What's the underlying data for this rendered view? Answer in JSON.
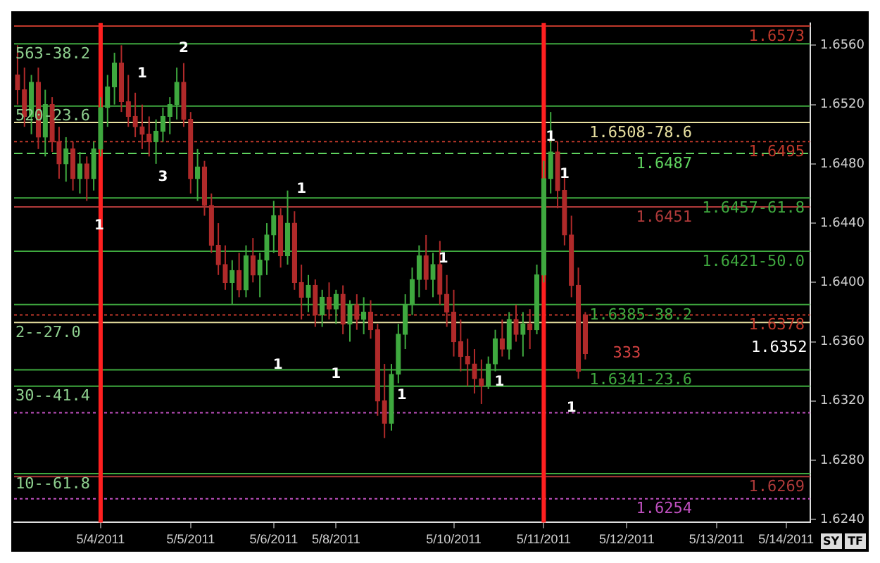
{
  "chart_data": {
    "type": "candlestick",
    "categories": [
      null,
      null,
      null,
      null,
      null,
      null,
      null,
      null,
      null,
      null,
      null,
      null,
      "5/4/2011",
      null,
      null,
      null,
      null,
      null,
      null,
      null,
      null,
      null,
      null,
      null,
      null,
      "5/5/2011",
      null,
      null,
      null,
      null,
      null,
      null,
      null,
      null,
      null,
      null,
      null,
      "5/6/2011",
      null,
      null,
      null,
      null,
      null,
      null,
      null,
      null,
      "5/8/2011",
      null,
      null,
      null,
      null,
      null,
      null,
      null,
      null,
      null,
      null,
      null,
      null,
      null,
      null,
      null,
      null,
      "5/10/2011",
      null,
      null,
      null,
      null,
      null,
      null,
      null,
      null,
      null,
      null,
      null,
      null,
      "5/11/2011",
      null,
      null,
      null,
      null,
      null,
      null,
      null,
      null,
      null,
      null,
      null,
      "5/12/2011",
      null,
      null,
      null,
      null,
      null,
      null,
      null,
      null,
      null,
      null,
      null,
      null,
      "5/13/2011",
      null,
      null,
      null,
      null,
      null,
      null,
      null,
      null,
      null,
      "5/14/2011",
      null,
      null,
      null
    ],
    "ohlc": [
      [
        1.654,
        1.656,
        1.652,
        1.653
      ],
      [
        1.653,
        1.6545,
        1.6505,
        1.6512
      ],
      [
        1.6512,
        1.654,
        1.65,
        1.6535
      ],
      [
        1.6535,
        1.6545,
        1.649,
        1.6498
      ],
      [
        1.6498,
        1.653,
        1.6485,
        1.652
      ],
      [
        1.652,
        1.6525,
        1.6488,
        1.6495
      ],
      [
        1.6495,
        1.6505,
        1.647,
        1.648
      ],
      [
        1.648,
        1.6498,
        1.6468,
        1.649
      ],
      [
        1.649,
        1.6495,
        1.6462,
        1.647
      ],
      [
        1.647,
        1.6488,
        1.646,
        1.648
      ],
      [
        1.648,
        1.6485,
        1.6455,
        1.647
      ],
      [
        1.647,
        1.6495,
        1.6462,
        1.649
      ],
      [
        1.649,
        1.6525,
        1.6485,
        1.6518
      ],
      [
        1.6518,
        1.654,
        1.6505,
        1.6532
      ],
      [
        1.6532,
        1.6555,
        1.652,
        1.6548
      ],
      [
        1.6548,
        1.656,
        1.6515,
        1.6522
      ],
      [
        1.6522,
        1.654,
        1.6505,
        1.6512
      ],
      [
        1.6512,
        1.6528,
        1.6498,
        1.6505
      ],
      [
        1.6505,
        1.652,
        1.649,
        1.65
      ],
      [
        1.65,
        1.6512,
        1.6485,
        1.6495
      ],
      [
        1.6495,
        1.651,
        1.648,
        1.6502
      ],
      [
        1.6502,
        1.6518,
        1.6495,
        1.6512
      ],
      [
        1.6512,
        1.6525,
        1.65,
        1.652
      ],
      [
        1.652,
        1.6545,
        1.651,
        1.6535
      ],
      [
        1.6535,
        1.6548,
        1.6505,
        1.651
      ],
      [
        1.651,
        1.6515,
        1.646,
        1.647
      ],
      [
        1.647,
        1.649,
        1.6455,
        1.6478
      ],
      [
        1.6478,
        1.6482,
        1.6445,
        1.6452
      ],
      [
        1.6452,
        1.646,
        1.642,
        1.6425
      ],
      [
        1.6425,
        1.644,
        1.6405,
        1.6412
      ],
      [
        1.6412,
        1.6425,
        1.6395,
        1.64
      ],
      [
        1.64,
        1.6415,
        1.6385,
        1.6408
      ],
      [
        1.6408,
        1.642,
        1.639,
        1.6395
      ],
      [
        1.6395,
        1.6425,
        1.639,
        1.6418
      ],
      [
        1.6418,
        1.643,
        1.64,
        1.6405
      ],
      [
        1.6405,
        1.642,
        1.639,
        1.6415
      ],
      [
        1.6415,
        1.644,
        1.6405,
        1.6432
      ],
      [
        1.6432,
        1.6455,
        1.642,
        1.6445
      ],
      [
        1.6445,
        1.645,
        1.641,
        1.6418
      ],
      [
        1.6418,
        1.6462,
        1.6412,
        1.644
      ],
      [
        1.644,
        1.6448,
        1.6395,
        1.64
      ],
      [
        1.64,
        1.6412,
        1.6375,
        1.639
      ],
      [
        1.639,
        1.6405,
        1.638,
        1.6398
      ],
      [
        1.6398,
        1.6402,
        1.637,
        1.6378
      ],
      [
        1.6378,
        1.6395,
        1.637,
        1.639
      ],
      [
        1.639,
        1.64,
        1.6375,
        1.6382
      ],
      [
        1.6382,
        1.6395,
        1.6372,
        1.6392
      ],
      [
        1.6392,
        1.6398,
        1.6365,
        1.6372
      ],
      [
        1.6372,
        1.6388,
        1.636,
        1.6385
      ],
      [
        1.6385,
        1.6392,
        1.6368,
        1.6375
      ],
      [
        1.6375,
        1.639,
        1.6365,
        1.638
      ],
      [
        1.638,
        1.6388,
        1.6362,
        1.6368
      ],
      [
        1.6368,
        1.6372,
        1.631,
        1.632
      ],
      [
        1.632,
        1.6345,
        1.6295,
        1.6305
      ],
      [
        1.6305,
        1.6345,
        1.63,
        1.6338
      ],
      [
        1.6338,
        1.6372,
        1.6332,
        1.6365
      ],
      [
        1.6365,
        1.6392,
        1.6355,
        1.6385
      ],
      [
        1.6385,
        1.641,
        1.6378,
        1.6402
      ],
      [
        1.6402,
        1.6425,
        1.639,
        1.6418
      ],
      [
        1.6418,
        1.6432,
        1.6395,
        1.6402
      ],
      [
        1.6402,
        1.642,
        1.639,
        1.6412
      ],
      [
        1.6412,
        1.6428,
        1.6385,
        1.6392
      ],
      [
        1.6392,
        1.6405,
        1.637,
        1.638
      ],
      [
        1.638,
        1.6395,
        1.635,
        1.636
      ],
      [
        1.636,
        1.6375,
        1.634,
        1.635
      ],
      [
        1.635,
        1.6362,
        1.633,
        1.6345
      ],
      [
        1.6345,
        1.6355,
        1.6325,
        1.6335
      ],
      [
        1.6335,
        1.6348,
        1.6318,
        1.633
      ],
      [
        1.633,
        1.635,
        1.6328,
        1.6345
      ],
      [
        1.6345,
        1.6368,
        1.634,
        1.6362
      ],
      [
        1.6362,
        1.6375,
        1.635,
        1.6355
      ],
      [
        1.6355,
        1.638,
        1.6348,
        1.6375
      ],
      [
        1.6375,
        1.6385,
        1.636,
        1.6365
      ],
      [
        1.6365,
        1.638,
        1.635,
        1.6372
      ],
      [
        1.6372,
        1.6382,
        1.6355,
        1.6368
      ],
      [
        1.6368,
        1.6412,
        1.6365,
        1.6405
      ],
      [
        1.6405,
        1.6482,
        1.64,
        1.647
      ],
      [
        1.647,
        1.6515,
        1.646,
        1.6488
      ],
      [
        1.6488,
        1.6495,
        1.645,
        1.6462
      ],
      [
        1.6462,
        1.6472,
        1.6425,
        1.6432
      ],
      [
        1.6432,
        1.6445,
        1.639,
        1.6398
      ],
      [
        1.6398,
        1.641,
        1.6335,
        1.634
      ],
      [
        1.6378,
        1.638,
        1.6348,
        1.6352
      ],
      null,
      null,
      null,
      null,
      null,
      null,
      null,
      null,
      null,
      null,
      null,
      null,
      null,
      null,
      null,
      null,
      null,
      null,
      null,
      null,
      null,
      null,
      null,
      null,
      null,
      null,
      null,
      null,
      null,
      null,
      null,
      null
    ],
    "ylim": [
      1.6238,
      1.6575
    ],
    "yticks": [
      {
        "value": 1.624,
        "label": "1.6240"
      },
      {
        "value": 1.628,
        "label": "1.6280"
      },
      {
        "value": 1.632,
        "label": "1.6320"
      },
      {
        "value": 1.636,
        "label": "1.6360"
      },
      {
        "value": 1.64,
        "label": "1.6400"
      },
      {
        "value": 1.644,
        "label": "1.6440"
      },
      {
        "value": 1.648,
        "label": "1.6480"
      },
      {
        "value": 1.652,
        "label": "1.6520"
      },
      {
        "value": 1.656,
        "label": "1.6560"
      }
    ],
    "ref_lines": [
      {
        "axis": "y",
        "value": 1.6573,
        "label": "1.6573",
        "color": "#c0392b",
        "line_style": "solid"
      },
      {
        "axis": "y",
        "value": 1.6561,
        "color": "#3fa93f",
        "line_style": "solid"
      },
      {
        "axis": "y",
        "value": 1.6519,
        "color": "#3fa93f",
        "line_style": "solid"
      },
      {
        "axis": "y",
        "value": 1.6508,
        "label": "1.6508-78.6",
        "color": "#e8e0a0",
        "line_style": "solid"
      },
      {
        "axis": "y",
        "value": 1.6495,
        "label": "1.6495",
        "color": "#c0392b",
        "line_style": "dotted"
      },
      {
        "axis": "y",
        "value": 1.6487,
        "label": "1.6487",
        "color": "#5fd35f",
        "line_style": "dashed"
      },
      {
        "axis": "y",
        "value": 1.6457,
        "label": "1.6457-61.8",
        "color": "#3fa93f",
        "line_style": "solid"
      },
      {
        "axis": "y",
        "value": 1.6451,
        "label": "1.6451",
        "color": "#b03a3a",
        "line_style": "solid"
      },
      {
        "axis": "y",
        "value": 1.6421,
        "label": "1.6421-50.0",
        "color": "#3fa93f",
        "line_style": "solid"
      },
      {
        "axis": "y",
        "value": 1.6385,
        "label": "1.6385-38.2",
        "color": "#3fa93f",
        "line_style": "solid"
      },
      {
        "axis": "y",
        "value": 1.6378,
        "label": "1.6378",
        "color": "#c0392b",
        "line_style": "dotted"
      },
      {
        "axis": "y",
        "value": 1.6373,
        "color": "#e8e0a0",
        "line_style": "solid"
      },
      {
        "axis": "y",
        "value": 1.6341,
        "label": "1.6341-23.6",
        "color": "#3fa93f",
        "line_style": "solid"
      },
      {
        "axis": "y",
        "value": 1.633,
        "color": "#3fa93f",
        "line_style": "solid"
      },
      {
        "axis": "y",
        "value": 1.6312,
        "color": "#c050c0",
        "line_style": "dotted"
      },
      {
        "axis": "y",
        "value": 1.6271,
        "color": "#3fa93f",
        "line_style": "solid"
      },
      {
        "axis": "y",
        "value": 1.6269,
        "label": "1.6269",
        "color": "#b03a3a",
        "line_style": "solid"
      },
      {
        "axis": "y",
        "value": 1.6254,
        "label": "1.6254",
        "color": "#c050c0",
        "line_style": "dotted"
      },
      {
        "axis": "x",
        "value": "5/4/2011",
        "color": "#ff2020",
        "line_style": "solid"
      },
      {
        "axis": "x",
        "value": "5/11/2011",
        "color": "#ff2020",
        "line_style": "solid"
      }
    ],
    "annotations": [
      {
        "text": "563-38.2",
        "y": 1.6561
      },
      {
        "text": "520-23.6",
        "y": 1.6519
      },
      {
        "text": "2--27.0",
        "y": 1.6373
      },
      {
        "text": "30--41.4",
        "y": 1.633
      },
      {
        "text": "10--61.8",
        "y": 1.6271
      },
      "1",
      "2",
      "3",
      "1",
      "1",
      "1",
      "1",
      "1",
      "1",
      "1",
      "1",
      "1",
      "1",
      "333",
      "1.6352",
      "SY",
      "TF"
    ]
  }
}
